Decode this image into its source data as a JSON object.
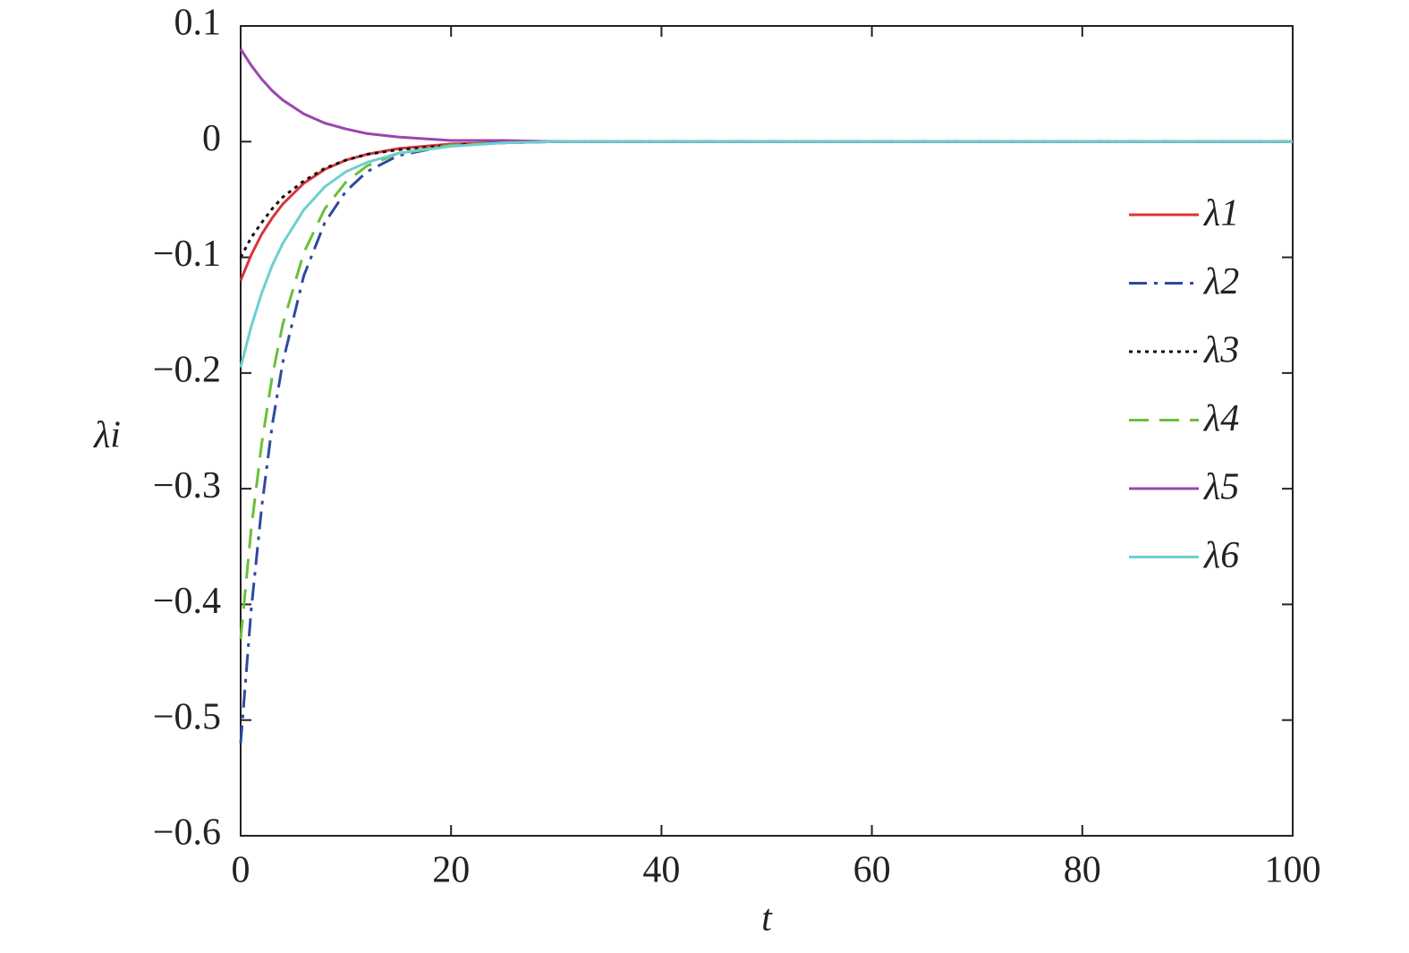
{
  "chart_data": {
    "type": "line",
    "x_label": "t",
    "y_label": "λi",
    "x": [
      0,
      1,
      2,
      3,
      4,
      6,
      8,
      10,
      12,
      15,
      20,
      25,
      30,
      40,
      60,
      80,
      100
    ],
    "series": [
      {
        "name": "λ1",
        "color": "#d9343a",
        "line_style": "solid",
        "values": [
          -0.12,
          -0.098,
          -0.08,
          -0.066,
          -0.054,
          -0.036,
          -0.024,
          -0.016,
          -0.011,
          -0.006,
          -0.002,
          -0.001,
          0,
          0,
          0,
          0,
          0
        ]
      },
      {
        "name": "λ2",
        "color": "#2e4a9e",
        "line_style": "dashdot",
        "values": [
          -0.52,
          -0.405,
          -0.316,
          -0.245,
          -0.191,
          -0.116,
          -0.07,
          -0.043,
          -0.026,
          -0.012,
          -0.003,
          -0.001,
          0,
          0,
          0,
          0,
          0
        ]
      },
      {
        "name": "λ3",
        "color": "#111111",
        "line_style": "dotted",
        "values": [
          -0.1,
          -0.083,
          -0.07,
          -0.058,
          -0.048,
          -0.034,
          -0.023,
          -0.016,
          -0.011,
          -0.007,
          -0.003,
          -0.001,
          0,
          0,
          0,
          0,
          0
        ]
      },
      {
        "name": "λ4",
        "color": "#6bbf3a",
        "line_style": "dashed",
        "values": [
          -0.43,
          -0.335,
          -0.261,
          -0.203,
          -0.158,
          -0.096,
          -0.058,
          -0.035,
          -0.021,
          -0.01,
          -0.003,
          -0.001,
          0,
          0,
          0,
          0,
          0
        ]
      },
      {
        "name": "λ5",
        "color": "#9b45b0",
        "line_style": "solid",
        "values": [
          0.08,
          0.066,
          0.054,
          0.044,
          0.036,
          0.024,
          0.016,
          0.011,
          0.007,
          0.004,
          0.001,
          0.001,
          0,
          0,
          0,
          0,
          0
        ]
      },
      {
        "name": "λ6",
        "color": "#6dcfcf",
        "line_style": "solid",
        "values": [
          -0.195,
          -0.16,
          -0.131,
          -0.107,
          -0.088,
          -0.059,
          -0.039,
          -0.026,
          -0.018,
          -0.01,
          -0.004,
          -0.001,
          0,
          0,
          0,
          0,
          0
        ]
      }
    ],
    "xlim": [
      0,
      100
    ],
    "xticks": [
      0,
      20,
      40,
      60,
      80,
      100
    ],
    "ylim": [
      -0.6,
      0.1
    ],
    "yticks": [
      {
        "value": -0.6,
        "label": "−0.6"
      },
      {
        "value": -0.5,
        "label": "−0.5"
      },
      {
        "value": -0.4,
        "label": "−0.4"
      },
      {
        "value": -0.3,
        "label": "−0.3"
      },
      {
        "value": -0.2,
        "label": "−0.2"
      },
      {
        "value": -0.1,
        "label": "−0.1"
      },
      0,
      0.1
    ],
    "grid": false,
    "legend": "right"
  }
}
